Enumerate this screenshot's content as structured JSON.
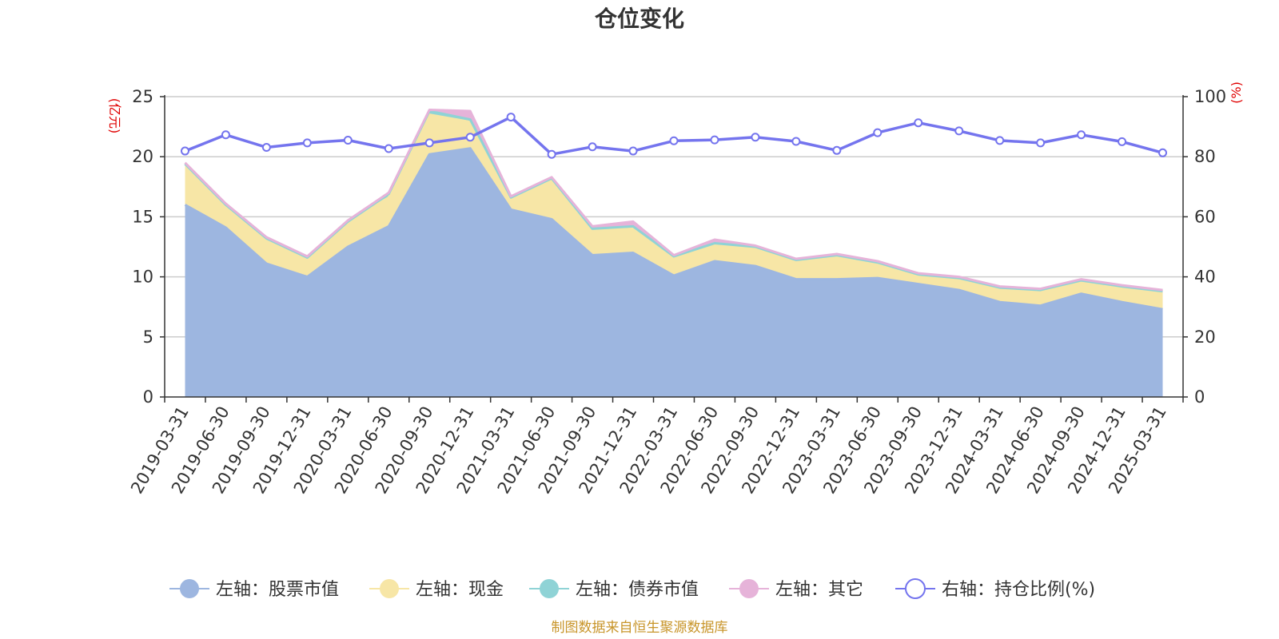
{
  "chart_data": {
    "type": "area",
    "title": "仓位变化",
    "left_unit": "(亿元)",
    "right_unit": "(%)",
    "source": "制图数据来自恒生聚源数据库",
    "left_ylim": [
      0,
      25
    ],
    "right_ylim": [
      0,
      100
    ],
    "left_ticks": [
      "0",
      "5",
      "10",
      "15",
      "20",
      "25"
    ],
    "right_ticks": [
      "0",
      "20",
      "40",
      "60",
      "80",
      "100"
    ],
    "grid": true,
    "legend_position": "bottom",
    "categories": [
      "2019-03-31",
      "2019-06-30",
      "2019-09-30",
      "2019-12-31",
      "2020-03-31",
      "2020-06-30",
      "2020-09-30",
      "2020-12-31",
      "2021-03-31",
      "2021-06-30",
      "2021-09-30",
      "2021-12-31",
      "2022-03-31",
      "2022-06-30",
      "2022-09-30",
      "2022-12-31",
      "2023-03-31",
      "2023-06-30",
      "2023-09-30",
      "2023-12-31",
      "2024-03-31",
      "2024-06-30",
      "2024-09-30",
      "2024-12-31",
      "2025-03-31"
    ],
    "series": [
      {
        "name": "左轴：股票市值",
        "axis": "left",
        "stack": true,
        "color": "#9db6e0",
        "values": [
          16.0,
          14.1,
          11.1,
          10.0,
          12.5,
          14.2,
          20.2,
          20.7,
          15.6,
          14.8,
          11.8,
          12.0,
          10.1,
          11.3,
          10.9,
          9.8,
          9.8,
          9.9,
          9.4,
          8.9,
          7.9,
          7.6,
          8.6,
          7.9,
          7.3
        ]
      },
      {
        "name": "左轴：现金",
        "axis": "left",
        "stack": true,
        "color": "#f7e6a6",
        "values": [
          3.4,
          1.9,
          2.1,
          1.6,
          2.1,
          2.4,
          3.3,
          2.2,
          1.0,
          3.4,
          2.1,
          2.0,
          1.5,
          1.4,
          1.6,
          1.6,
          2.0,
          1.3,
          0.8,
          1.0,
          1.2,
          1.3,
          1.1,
          1.3,
          1.5
        ]
      },
      {
        "name": "左轴：债券市值",
        "axis": "left",
        "stack": true,
        "color": "#8fd3d6",
        "values": [
          0,
          0,
          0,
          0,
          0,
          0.3,
          0.3,
          0.2,
          0,
          0,
          0.1,
          0.2,
          0.1,
          0.1,
          0,
          0,
          0,
          0,
          0,
          0,
          0,
          0,
          0,
          0,
          0
        ]
      },
      {
        "name": "左轴：其它",
        "axis": "left",
        "stack": true,
        "color": "#e6b3d9",
        "values": [
          0.1,
          0.1,
          0.1,
          0.1,
          0.1,
          0.1,
          0.1,
          0.7,
          0.1,
          0.1,
          0.2,
          0.4,
          0.1,
          0.3,
          0.1,
          0.1,
          0.1,
          0.1,
          0.1,
          0.1,
          0.1,
          0.1,
          0.1,
          0.1,
          0.1
        ]
      },
      {
        "name": "右轴：持仓比例(%)",
        "axis": "right",
        "stack": false,
        "color": "#7474ee",
        "values": [
          81.9,
          87.3,
          83.1,
          84.6,
          85.5,
          82.7,
          84.6,
          86.5,
          93.2,
          80.8,
          83.3,
          81.9,
          85.3,
          85.6,
          86.5,
          85.1,
          82.1,
          88.0,
          91.3,
          88.6,
          85.4,
          84.6,
          87.3,
          85.0,
          81.3
        ]
      }
    ]
  }
}
